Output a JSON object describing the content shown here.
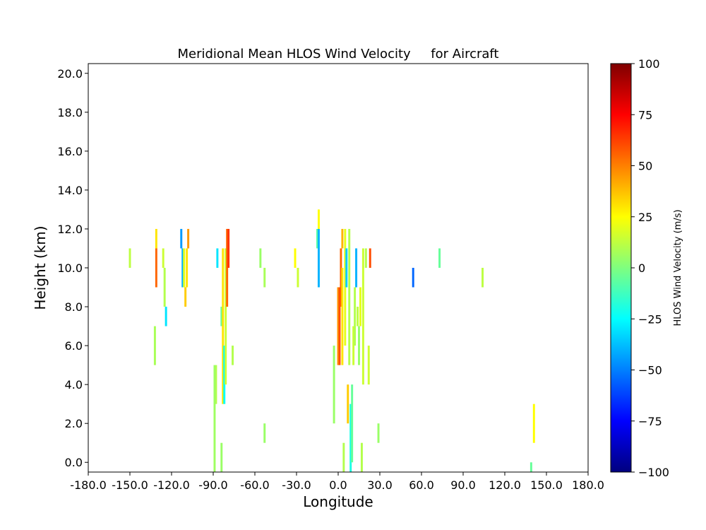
{
  "chart_data": {
    "type": "heatmap",
    "title": "Meridional Mean HLOS Wind Velocity     for Aircraft",
    "xlabel": "Longitude",
    "ylabel": "Height (km)",
    "xlim": [
      -180,
      180
    ],
    "ylim": [
      -0.5,
      20.5
    ],
    "xticks": [
      -180,
      -150,
      -120,
      -90,
      -60,
      -30,
      0,
      30,
      60,
      90,
      120,
      150,
      180
    ],
    "xtick_labels": [
      "-180.0",
      "-150.0",
      "-120.0",
      "-90.0",
      "-60.0",
      "-30.0",
      "0.0",
      "30.0",
      "60.0",
      "90.0",
      "120.0",
      "150.0",
      "180.0"
    ],
    "yticks": [
      0,
      2,
      4,
      6,
      8,
      10,
      12,
      14,
      16,
      18,
      20
    ],
    "ytick_labels": [
      "0.0",
      "2.0",
      "4.0",
      "6.0",
      "8.0",
      "10.0",
      "12.0",
      "14.0",
      "16.0",
      "18.0",
      "20.0"
    ],
    "colorbar": {
      "label": "HLOS Wind Velocity (m/s)",
      "colormap": "jet",
      "range": [
        -100,
        100
      ],
      "ticks": [
        -100,
        -75,
        -50,
        -25,
        0,
        25,
        50,
        75,
        100
      ],
      "tick_labels": [
        "−100",
        "−75",
        "−50",
        "−25",
        "0",
        "25",
        "50",
        "75",
        "100"
      ]
    },
    "cell_width_deg": 1.5,
    "cells": [
      {
        "lon": -150,
        "h0": 10,
        "h1": 11,
        "v": 12
      },
      {
        "lon": -131,
        "h0": 9,
        "h1": 11,
        "v": 55
      },
      {
        "lon": -131,
        "h0": 11,
        "h1": 12,
        "v": 30
      },
      {
        "lon": -132,
        "h0": 5,
        "h1": 7,
        "v": 8
      },
      {
        "lon": -126,
        "h0": 10,
        "h1": 11,
        "v": 15
      },
      {
        "lon": -125,
        "h0": 8,
        "h1": 10,
        "v": 10
      },
      {
        "lon": -124,
        "h0": 7,
        "h1": 8,
        "v": -30
      },
      {
        "lon": -113,
        "h0": 11,
        "h1": 12,
        "v": -45
      },
      {
        "lon": -112,
        "h0": 9,
        "h1": 11,
        "v": -40
      },
      {
        "lon": -111,
        "h0": 9,
        "h1": 11,
        "v": 20
      },
      {
        "lon": -110,
        "h0": 8,
        "h1": 9,
        "v": 35
      },
      {
        "lon": -109,
        "h0": 9,
        "h1": 11,
        "v": 30
      },
      {
        "lon": -108,
        "h0": 11,
        "h1": 12,
        "v": 45
      },
      {
        "lon": -87,
        "h0": 10,
        "h1": 11,
        "v": -30
      },
      {
        "lon": -88,
        "h0": 3,
        "h1": 5,
        "v": 10
      },
      {
        "lon": -89,
        "h0": -0.5,
        "h1": 5,
        "v": 6
      },
      {
        "lon": -84,
        "h0": 7,
        "h1": 8,
        "v": -5
      },
      {
        "lon": -83,
        "h0": 3,
        "h1": 11,
        "v": 30
      },
      {
        "lon": -82,
        "h0": 3,
        "h1": 6,
        "v": -25
      },
      {
        "lon": -81,
        "h0": 4,
        "h1": 11,
        "v": 15
      },
      {
        "lon": -80,
        "h0": 8,
        "h1": 12,
        "v": 55
      },
      {
        "lon": -79,
        "h0": 10,
        "h1": 12,
        "v": 65
      },
      {
        "lon": -84,
        "h0": -0.5,
        "h1": 1,
        "v": 5
      },
      {
        "lon": -76,
        "h0": 5,
        "h1": 6,
        "v": 10
      },
      {
        "lon": -56,
        "h0": 10,
        "h1": 11,
        "v": 5
      },
      {
        "lon": -53,
        "h0": 9,
        "h1": 10,
        "v": 8
      },
      {
        "lon": -53,
        "h0": 1,
        "h1": 2,
        "v": 5
      },
      {
        "lon": -31,
        "h0": 10,
        "h1": 11,
        "v": 25
      },
      {
        "lon": -29,
        "h0": 9,
        "h1": 10,
        "v": 15
      },
      {
        "lon": -15,
        "h0": 11,
        "h1": 12,
        "v": -8
      },
      {
        "lon": -14,
        "h0": 9,
        "h1": 12,
        "v": -40
      },
      {
        "lon": -14,
        "h0": 12,
        "h1": 13,
        "v": 25
      },
      {
        "lon": -3,
        "h0": 2,
        "h1": 6,
        "v": 5
      },
      {
        "lon": 0,
        "h0": 5,
        "h1": 9,
        "v": 45
      },
      {
        "lon": 1,
        "h0": 5,
        "h1": 9,
        "v": 60
      },
      {
        "lon": 2,
        "h0": 8,
        "h1": 11,
        "v": 55
      },
      {
        "lon": 3,
        "h0": 5,
        "h1": 10,
        "v": 30
      },
      {
        "lon": 3,
        "h0": 11,
        "h1": 12,
        "v": 40
      },
      {
        "lon": 4,
        "h0": -0.5,
        "h1": 1,
        "v": 10
      },
      {
        "lon": 5,
        "h0": 6,
        "h1": 12,
        "v": 20
      },
      {
        "lon": 6,
        "h0": 9,
        "h1": 11,
        "v": -35
      },
      {
        "lon": 7,
        "h0": 2,
        "h1": 4,
        "v": 35
      },
      {
        "lon": 8,
        "h0": 5,
        "h1": 12,
        "v": 10
      },
      {
        "lon": 9,
        "h0": -0.5,
        "h1": 3,
        "v": -20
      },
      {
        "lon": 10,
        "h0": 0,
        "h1": 4,
        "v": -5
      },
      {
        "lon": 11,
        "h0": 5,
        "h1": 7,
        "v": 15
      },
      {
        "lon": 12,
        "h0": 6,
        "h1": 9,
        "v": 10
      },
      {
        "lon": 13,
        "h0": 9,
        "h1": 11,
        "v": -40
      },
      {
        "lon": 14,
        "h0": 7,
        "h1": 8,
        "v": 12
      },
      {
        "lon": 15,
        "h0": 5,
        "h1": 7,
        "v": 5
      },
      {
        "lon": 16,
        "h0": 7,
        "h1": 9,
        "v": 20
      },
      {
        "lon": 17,
        "h0": -0.5,
        "h1": 1,
        "v": 10
      },
      {
        "lon": 18,
        "h0": 4,
        "h1": 11,
        "v": 15
      },
      {
        "lon": 20,
        "h0": 10,
        "h1": 11,
        "v": 10
      },
      {
        "lon": 22,
        "h0": 4,
        "h1": 6,
        "v": 15
      },
      {
        "lon": 23,
        "h0": 10,
        "h1": 11,
        "v": 60
      },
      {
        "lon": 29,
        "h0": 1,
        "h1": 2,
        "v": 5
      },
      {
        "lon": 54,
        "h0": 9,
        "h1": 10,
        "v": -55
      },
      {
        "lon": 73,
        "h0": 10,
        "h1": 11,
        "v": -5
      },
      {
        "lon": 104,
        "h0": 9,
        "h1": 10,
        "v": 12
      },
      {
        "lon": 139,
        "h0": -0.5,
        "h1": 0,
        "v": -5
      },
      {
        "lon": 141,
        "h0": 1,
        "h1": 3,
        "v": 25
      }
    ]
  }
}
